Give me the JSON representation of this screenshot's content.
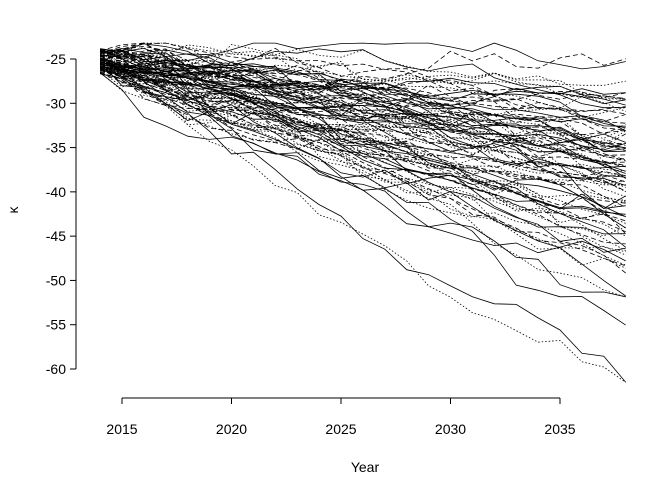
{
  "chart_data": {
    "type": "line",
    "title": "",
    "xlabel": "Year",
    "ylabel": "κ",
    "xlim": [
      2014,
      2038
    ],
    "ylim": [
      -63,
      -23
    ],
    "xticks": [
      2015,
      2020,
      2025,
      2030,
      2035
    ],
    "yticks": [
      -25,
      -30,
      -35,
      -40,
      -45,
      -50,
      -55,
      -60
    ],
    "x_tick_labels": [
      "2015",
      "2020",
      "2025",
      "2030",
      "2035"
    ],
    "y_tick_labels": [
      "-25",
      "-30",
      "-35",
      "-40",
      "-45",
      "-50",
      "-55",
      "-60"
    ],
    "grid": false,
    "legend": "none",
    "line_color": "#000000",
    "series_count": 100,
    "line_styles": [
      "solid",
      "dotted",
      "dashed"
    ],
    "start_year": 2014,
    "end_year": 2038,
    "start_value_range": [
      -27,
      -23.5
    ],
    "end_value_range": [
      -62,
      -31
    ]
  }
}
